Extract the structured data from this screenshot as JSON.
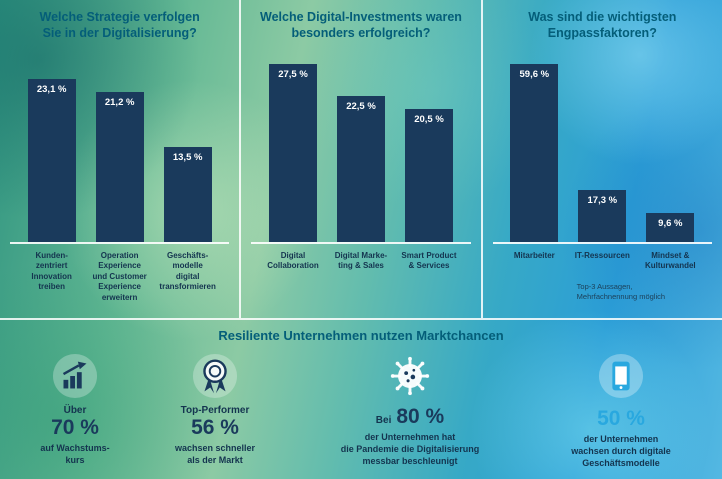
{
  "colors": {
    "bar_navy": "#1a3a5c",
    "heading_teal": "#045e79",
    "accent_blue": "#29a8df",
    "value_label_white": "#ffffff"
  },
  "chart_data": [
    {
      "type": "bar",
      "title": "Welche Strategie verfolgen\nSie in der Digitalisierung?",
      "categories": [
        "Kundenzentriert Innovation treiben",
        "Operation Experience und Customer Experience erweitern",
        "Geschäftsmodelle digital transformieren"
      ],
      "cat_display": [
        "Kunden-\nzentriert\nInnovation\ntreiben",
        "Operation\nExperience\nund Customer\nExperience\nerweitern",
        "Geschäfts-\nmodelle\ndigital\ntransformieren"
      ],
      "values": [
        23.1,
        21.2,
        13.5
      ],
      "value_labels": [
        "23,1 %",
        "21,2 %",
        "13,5 %"
      ],
      "unit": "%",
      "ylim": [
        0,
        27.5
      ],
      "legend": "none",
      "grid": false
    },
    {
      "type": "bar",
      "title": "Welche Digital-Investments waren\nbesonders erfolgreich?",
      "categories": [
        "Digital Collaboration",
        "Digital Marketing & Sales",
        "Smart Product & Services"
      ],
      "cat_display": [
        "Digital\nCollaboration",
        "Digital Marke-\nting & Sales",
        "Smart Product\n& Services"
      ],
      "values": [
        27.5,
        22.5,
        20.5
      ],
      "value_labels": [
        "27,5 %",
        "22,5 %",
        "20,5 %"
      ],
      "unit": "%",
      "ylim": [
        0,
        27.5
      ],
      "legend": "none",
      "grid": false
    },
    {
      "type": "bar",
      "title": "Was sind die wichtigsten\nEngpassfaktoren?",
      "categories": [
        "Mitarbeiter",
        "IT-Ressourcen",
        "Mindset & Kulturwandel"
      ],
      "cat_display": [
        "Mitarbeiter",
        "IT-Ressourcen",
        "Mindset &\nKulturwandel"
      ],
      "values": [
        59.6,
        17.3,
        9.6
      ],
      "value_labels": [
        "59,6 %",
        "17,3 %",
        "9,6 %"
      ],
      "unit": "%",
      "ylim": [
        0,
        59.6
      ],
      "legend": "none",
      "grid": false,
      "note": "Top-3 Aussagen,\nMehrfachnennung möglich"
    }
  ],
  "bottom": {
    "title": "Resiliente Unternehmen nutzen Marktchancen",
    "items": [
      {
        "icon": "growth-chart-icon",
        "pre": "Über",
        "big": "70 %",
        "post": "auf Wachstums-\nkurs"
      },
      {
        "icon": "award-icon",
        "pre": "Top-Performer",
        "big": "56 %",
        "post": "wachsen schneller\nals der Markt"
      },
      {
        "icon": "virus-icon",
        "pre": "Bei",
        "big": "80 %",
        "post": "der Unternehmen hat\ndie Pandemie die Digitalisierung\nmessbar beschleunigt"
      },
      {
        "icon": "smartphone-icon",
        "big": "50 %",
        "post": "der Unternehmen\nwachsen durch digitale\nGeschäftsmodelle"
      }
    ]
  }
}
